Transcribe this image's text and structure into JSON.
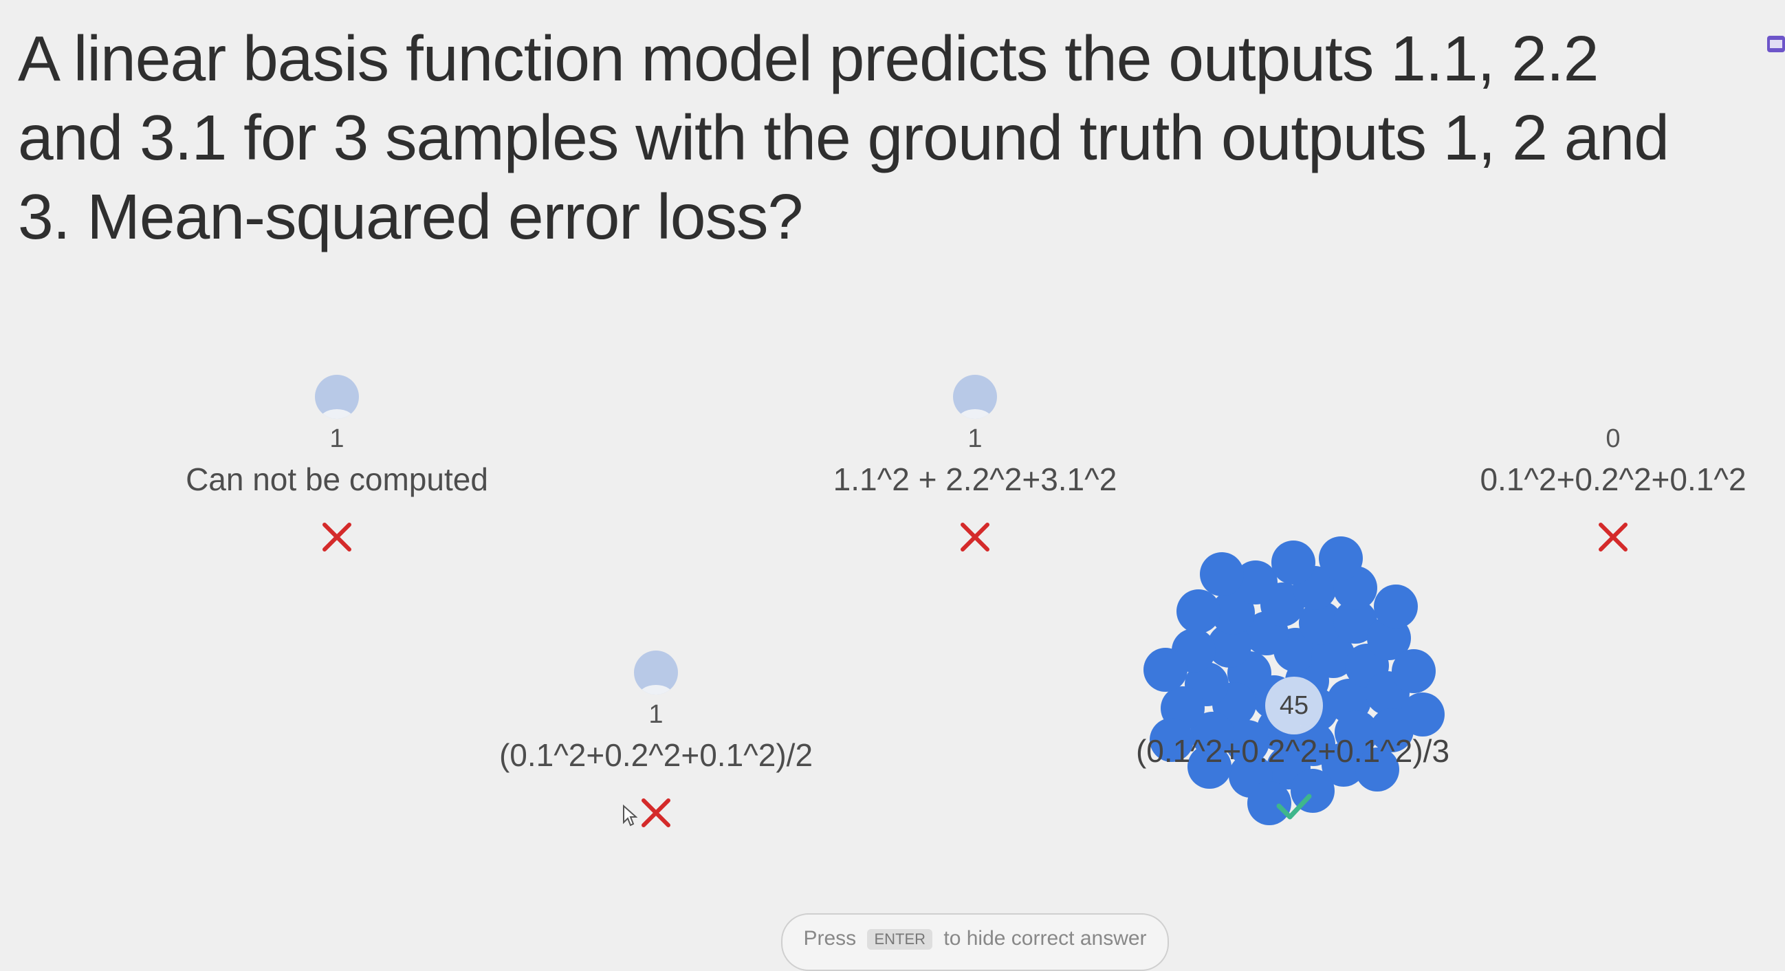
{
  "question": {
    "line1": "A linear basis function model predicts the outputs 1.1, 2.2",
    "line2": "and 3.1 for 3 samples with the ground truth outputs 1, 2 and",
    "line3": "3. Mean-squared error loss?"
  },
  "options": [
    {
      "count": "1",
      "label": "Can not be computed",
      "correct": false
    },
    {
      "count": "1",
      "label": "1.1^2 + 2.2^2+3.1^2",
      "correct": false
    },
    {
      "count": "0",
      "label": "0.1^2+0.2^2+0.1^2",
      "correct": false
    },
    {
      "count": "1",
      "label": "(0.1^2+0.2^2+0.1^2)/2",
      "correct": false
    },
    {
      "count": "45",
      "label": "(0.1^2+0.2^2+0.1^2)/3",
      "correct": true
    }
  ],
  "hint": {
    "prefix": "Press",
    "key": "ENTER",
    "suffix": "to hide correct answer"
  },
  "colors": {
    "vote": "#3b78dc",
    "avatar": "#b8c9e7",
    "wrong": "#d42a2a",
    "correct": "#3fb68b"
  },
  "icons": {
    "wrong": "x-mark-icon",
    "correct": "check-mark-icon",
    "voter": "avatar-icon",
    "cursor": "cursor-icon"
  }
}
